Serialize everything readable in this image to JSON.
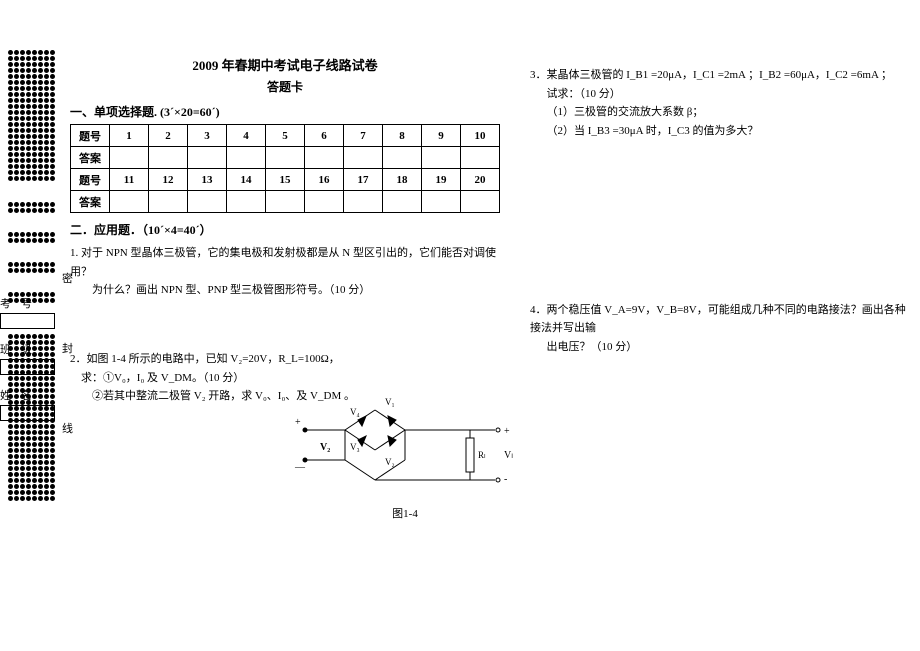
{
  "title": "2009 年春期中考试电子线路试卷",
  "subtitle": "答题卡",
  "section1_head": "一、单项选择题. (3´×20=60´)",
  "section2_head": "二．应用题．（10´×4=40´）",
  "table": {
    "row_label1": "题号",
    "row_label2": "答案",
    "nums1": [
      "1",
      "2",
      "3",
      "4",
      "5",
      "6",
      "7",
      "8",
      "9",
      "10"
    ],
    "nums2": [
      "11",
      "12",
      "13",
      "14",
      "15",
      "16",
      "17",
      "18",
      "19",
      "20"
    ]
  },
  "q1": {
    "line1": "1. 对于 NPN 型晶体三极管，它的集电极和发射极都是从 N 型区引出的，它们能否对调使用？",
    "line2": "为什么？画出 NPN 型、PNP 型三极管图形符号。（10 分）"
  },
  "q2": {
    "line1": "2．如图 1-4 所示的电路中，已知 V₂=20V，R_L=100Ω，",
    "line2": "求：①V₀，I₀ 及 V_DM。（10 分）",
    "line3": "②若其中整流二极管 V₂ 开路，求 V₀、I₀、及 V_DM 。",
    "caption": "图1-4"
  },
  "q3": {
    "line1": "3．某晶体三极管的 I_B1 =20μA，I_C1 =2mA ；I_B2 =60μA，I_C2 =6mA ；",
    "line2": "试求：（10 分）",
    "line3": "（1）三极管的交流放大系数 β；",
    "line4": "（2）当 I_B3 =30μA 时，I_C3 的值为多大？"
  },
  "q4": {
    "line1": "4．两个稳压值 V_A=9V，V_B=8V，可能组成几种不同的电路接法？画出各种接法并写出输",
    "line2": "出电压？（10 分）"
  },
  "info": {
    "kaohao": "考号",
    "banji": "班级",
    "xingming": "姓名"
  },
  "seal": {
    "mi": "密",
    "feng": "封",
    "xian": "线"
  },
  "circuit_labels": {
    "v1": "V₁",
    "v2": "V₂",
    "v3": "V₃",
    "v4": "V₄",
    "rl": "R_L",
    "vl": "V_L",
    "plus": "+",
    "minus": "-",
    "src": "V₂",
    "srcneg": "—"
  },
  "colors": {
    "fg": "#000000",
    "bg": "#ffffff"
  }
}
